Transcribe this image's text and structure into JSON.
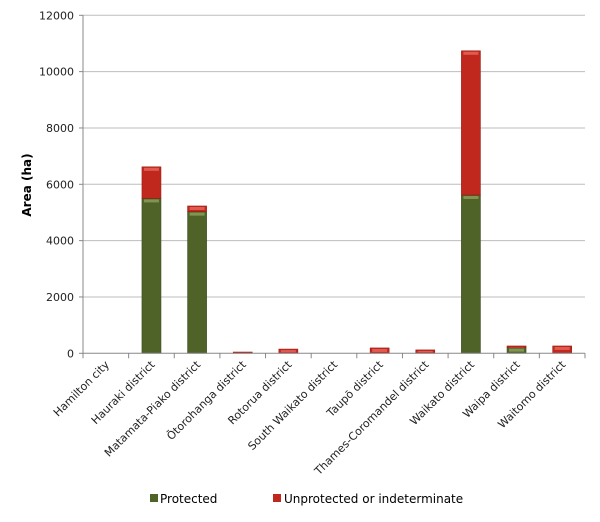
{
  "chart_data": {
    "type": "bar",
    "stacked": true,
    "title": "",
    "xlabel": "",
    "ylabel": "Area (ha)",
    "ylim": [
      0,
      12000
    ],
    "yticks": [
      0,
      2000,
      4000,
      6000,
      8000,
      10000,
      12000
    ],
    "grid": true,
    "legend": "bottom",
    "categories": [
      "Hamilton city",
      "Hauraki district",
      "Matamata-Piako district",
      "Ōtorohanga district",
      "Rotorua district",
      "South Waikato district",
      "Taupō district",
      "Thames-Coromandel district",
      "Waikato district",
      "Waipa district",
      "Waitomo district"
    ],
    "series": [
      {
        "name": "Protected",
        "color": "#4f6228",
        "values": [
          0,
          5500,
          5030,
          0,
          0,
          0,
          0,
          0,
          5620,
          200,
          0
        ]
      },
      {
        "name": "Unprotected or indeterminate",
        "color": "#c0281e",
        "values": [
          0,
          1120,
          200,
          45,
          150,
          0,
          190,
          120,
          5120,
          60,
          260
        ]
      }
    ]
  }
}
